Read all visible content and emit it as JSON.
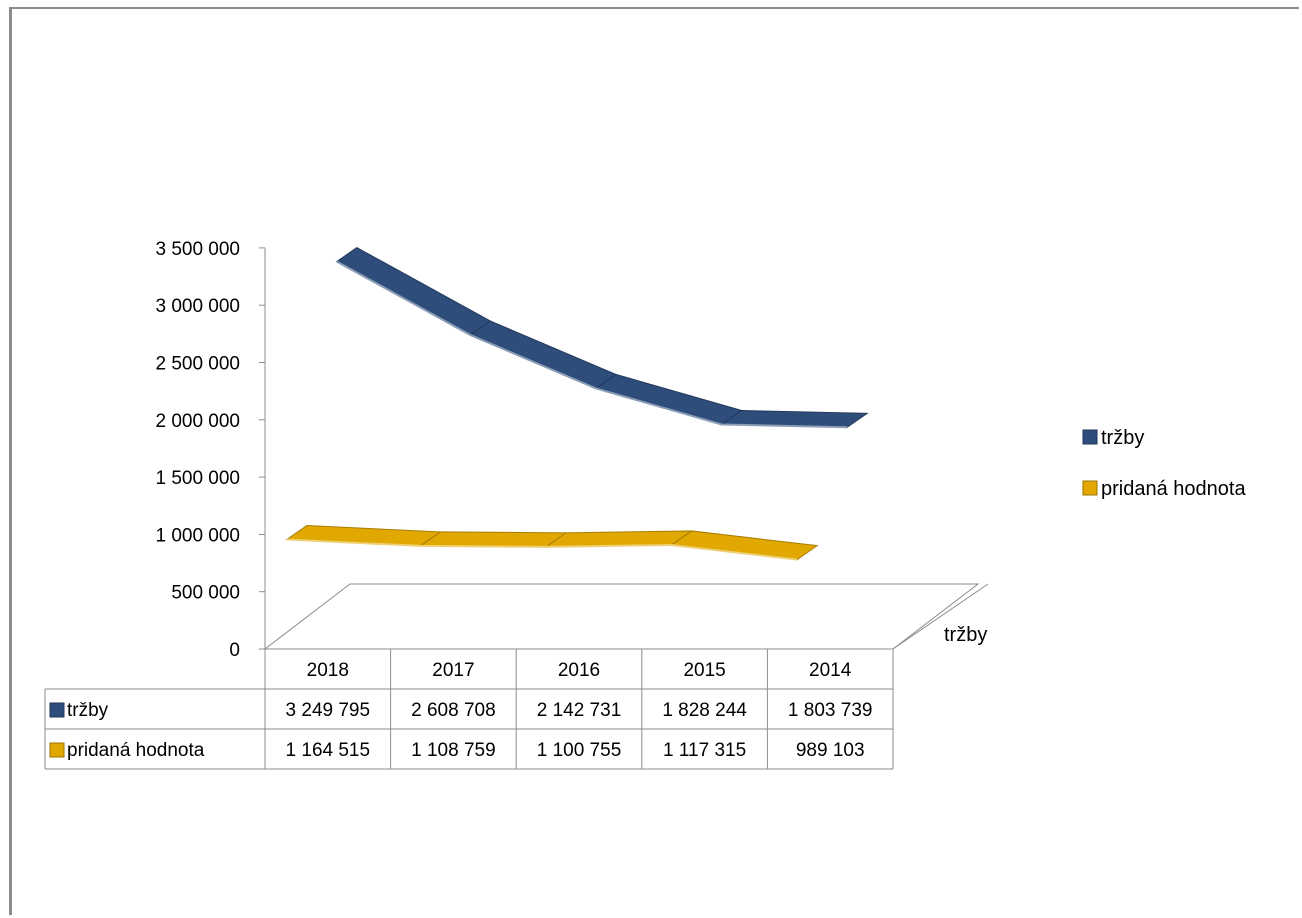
{
  "chart_data": {
    "type": "line",
    "style": "3d-ribbon",
    "categories": [
      "2018",
      "2017",
      "2016",
      "2015",
      "2014"
    ],
    "y_ticks": [
      "0",
      "500 000",
      "1 000 000",
      "1 500 000",
      "2 000 000",
      "2 500 000",
      "3 000 000",
      "3 500 000"
    ],
    "ylim": [
      0,
      3500000
    ],
    "series": [
      {
        "name": "tržby",
        "color": "#2e4d7b",
        "values": [
          3249795,
          2608708,
          2142731,
          1828244,
          1803739
        ],
        "value_labels": [
          "3 249 795",
          "2 608 708",
          "2 142 731",
          "1 828 244",
          "1 803 739"
        ]
      },
      {
        "name": "pridaná hodnota",
        "color": "#e0a800",
        "values": [
          1164515,
          1108759,
          1100755,
          1117315,
          989103
        ],
        "value_labels": [
          "1 164 515",
          "1 108 759",
          "1 100 755",
          "1 117 315",
          "989 103"
        ]
      }
    ],
    "depth_axis_label": "tržby",
    "legend_position": "right",
    "data_table": true,
    "grid": false
  }
}
